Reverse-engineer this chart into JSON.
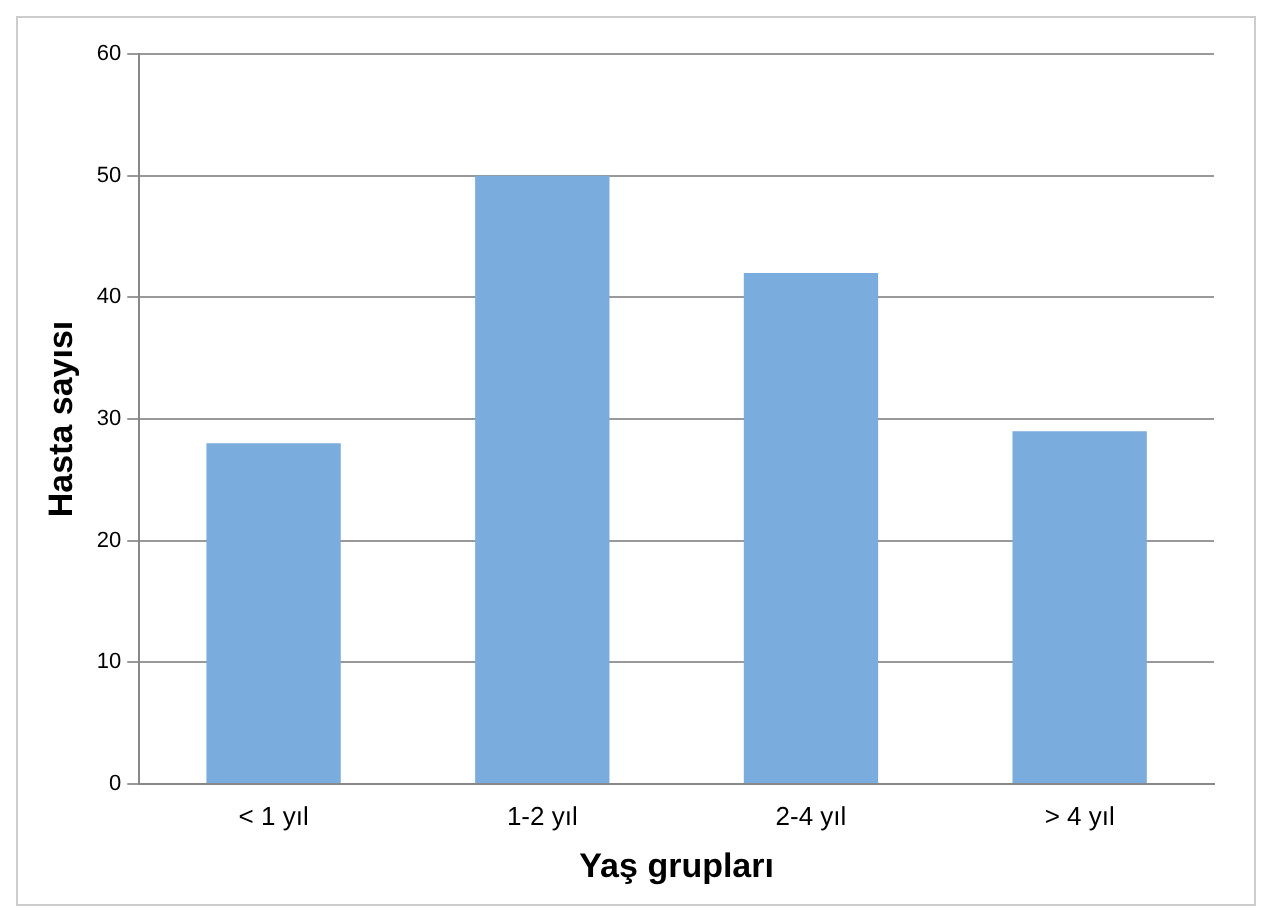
{
  "chart_data": {
    "type": "bar",
    "xlabel": "Yaş grupları",
    "ylabel": "Hasta sayısı",
    "categories": [
      "< 1 yıl",
      "1-2 yıl",
      "2-4 yıl",
      "> 4 yıl"
    ],
    "values": [
      28,
      50,
      42,
      29
    ],
    "color": "#7aacde",
    "ylim": [
      0,
      60
    ],
    "yticks": [
      0,
      10,
      20,
      30,
      40,
      50,
      60
    ],
    "grid": "y",
    "legend": false
  }
}
